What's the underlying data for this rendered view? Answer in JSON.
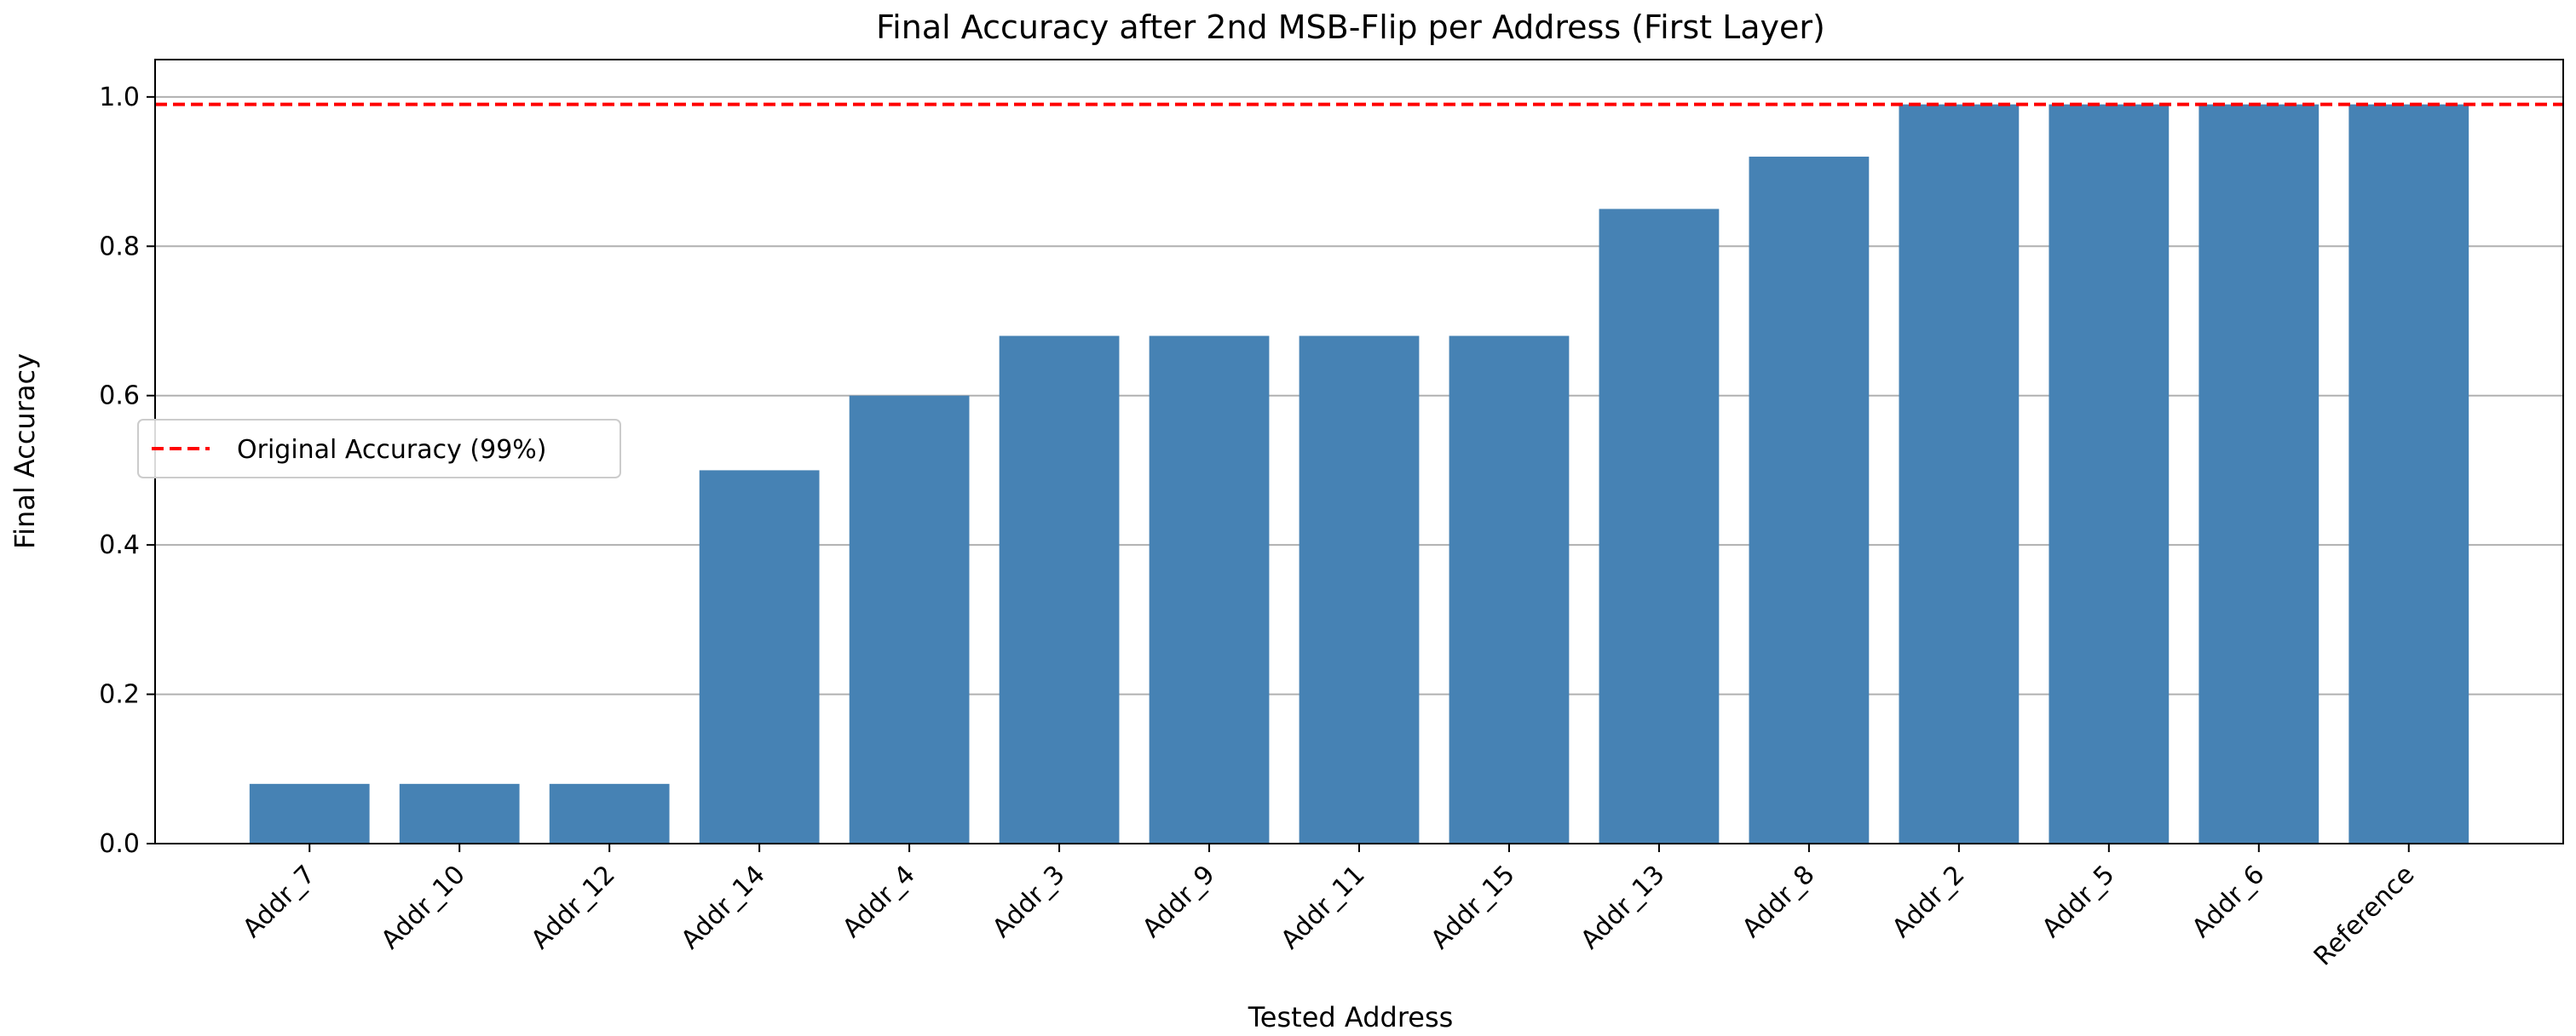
{
  "chart_data": {
    "type": "bar",
    "title": "Final Accuracy after 2nd MSB-Flip per Address (First Layer)",
    "xlabel": "Tested Address",
    "ylabel": "Final Accuracy",
    "categories": [
      "Addr_7",
      "Addr_10",
      "Addr_12",
      "Addr_14",
      "Addr_4",
      "Addr_3",
      "Addr_9",
      "Addr_11",
      "Addr_15",
      "Addr_13",
      "Addr_8",
      "Addr_2",
      "Addr_5",
      "Addr_6",
      "Reference"
    ],
    "values": [
      0.08,
      0.08,
      0.08,
      0.5,
      0.6,
      0.68,
      0.68,
      0.68,
      0.68,
      0.85,
      0.92,
      0.99,
      0.99,
      0.99,
      0.99
    ],
    "ylim": [
      0,
      1.05
    ],
    "yticks": [
      0.0,
      0.2,
      0.4,
      0.6,
      0.8,
      1.0
    ],
    "ytick_labels": [
      "0.0",
      "0.2",
      "0.4",
      "0.6",
      "0.8",
      "1.0"
    ],
    "grid": "y",
    "bar_color": "#4682b4",
    "reference_line": {
      "value": 0.99,
      "label": "Original Accuracy (99%)",
      "color": "#ff0000",
      "style": "dashed"
    },
    "legend": {
      "position": "center-left",
      "entries": [
        "Original Accuracy (99%)"
      ]
    }
  }
}
